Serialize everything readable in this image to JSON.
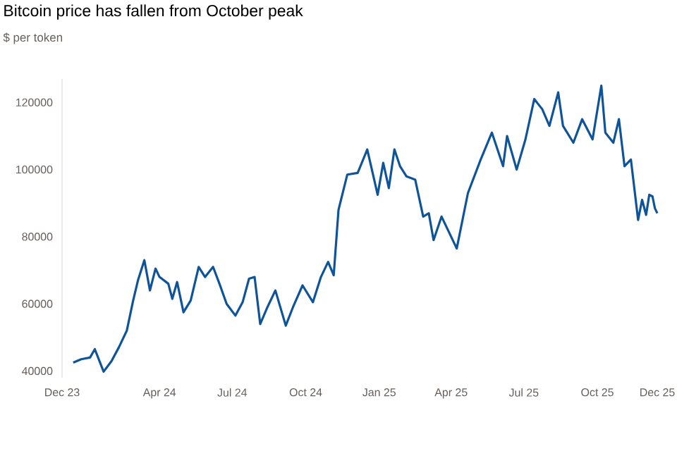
{
  "chart_data": {
    "type": "line",
    "title": "Bitcoin price has fallen from October peak",
    "subtitle": "$ per token",
    "x": [
      "2023-12-15",
      "2023-12-25",
      "2024-01-05",
      "2024-01-11",
      "2024-01-22",
      "2024-02-01",
      "2024-02-10",
      "2024-02-20",
      "2024-02-28",
      "2024-03-05",
      "2024-03-13",
      "2024-03-20",
      "2024-03-27",
      "2024-04-01",
      "2024-04-12",
      "2024-04-17",
      "2024-04-23",
      "2024-05-01",
      "2024-05-10",
      "2024-05-20",
      "2024-05-28",
      "2024-06-07",
      "2024-06-15",
      "2024-06-24",
      "2024-07-05",
      "2024-07-14",
      "2024-07-22",
      "2024-07-29",
      "2024-08-05",
      "2024-08-14",
      "2024-08-24",
      "2024-09-06",
      "2024-09-15",
      "2024-09-27",
      "2024-10-10",
      "2024-10-20",
      "2024-10-29",
      "2024-11-05",
      "2024-11-11",
      "2024-11-22",
      "2024-12-05",
      "2024-12-17",
      "2024-12-30",
      "2025-01-06",
      "2025-01-13",
      "2025-01-20",
      "2025-01-27",
      "2025-02-04",
      "2025-02-15",
      "2025-02-25",
      "2025-03-04",
      "2025-03-10",
      "2025-03-20",
      "2025-04-08",
      "2025-04-22",
      "2025-05-08",
      "2025-05-22",
      "2025-06-05",
      "2025-06-10",
      "2025-06-22",
      "2025-07-03",
      "2025-07-14",
      "2025-07-24",
      "2025-08-02",
      "2025-08-13",
      "2025-08-19",
      "2025-09-01",
      "2025-09-12",
      "2025-09-25",
      "2025-10-06",
      "2025-10-11",
      "2025-10-21",
      "2025-10-28",
      "2025-11-04",
      "2025-11-12",
      "2025-11-21",
      "2025-11-26",
      "2025-12-01",
      "2025-12-05",
      "2025-12-09",
      "2025-12-12",
      "2025-12-15"
    ],
    "series": [
      {
        "color": "#0f5499",
        "values": [
          42500,
          43500,
          44000,
          46500,
          39800,
          43000,
          47000,
          52000,
          61000,
          67000,
          73000,
          64000,
          70500,
          68000,
          66000,
          61500,
          66500,
          57500,
          61000,
          71000,
          68000,
          71000,
          66000,
          60000,
          56500,
          60500,
          67500,
          68000,
          54000,
          59000,
          64000,
          53500,
          59000,
          65500,
          60500,
          68000,
          72500,
          68500,
          88000,
          98500,
          99000,
          106000,
          92500,
          102000,
          94500,
          106000,
          101000,
          98000,
          97000,
          86000,
          87000,
          79000,
          86000,
          76500,
          93000,
          103000,
          111000,
          101000,
          110000,
          100000,
          109000,
          121000,
          118000,
          113000,
          123000,
          113000,
          108000,
          115000,
          109000,
          125000,
          111000,
          108000,
          115000,
          101000,
          103000,
          85000,
          91000,
          86500,
          92500,
          92000,
          88500,
          87000
        ]
      }
    ],
    "xticks": [
      {
        "value": "2023-12-01",
        "label": "Dec 23"
      },
      {
        "value": "2024-04-01",
        "label": "Apr 24"
      },
      {
        "value": "2024-07-01",
        "label": "Jul 24"
      },
      {
        "value": "2024-10-01",
        "label": "Oct 24"
      },
      {
        "value": "2025-01-01",
        "label": "Jan 25"
      },
      {
        "value": "2025-04-01",
        "label": "Apr 25"
      },
      {
        "value": "2025-07-01",
        "label": "Jul 25"
      },
      {
        "value": "2025-10-01",
        "label": "Oct 25"
      },
      {
        "value": "2025-12-15",
        "label": "Dec 25"
      }
    ],
    "xlim": [
      "2023-12-01",
      "2025-12-15"
    ],
    "ylim": [
      38000,
      127000
    ],
    "yticks": [
      40000,
      60000,
      80000,
      100000,
      120000
    ]
  }
}
